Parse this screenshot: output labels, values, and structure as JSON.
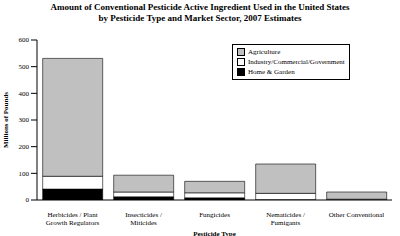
{
  "chart_data": {
    "type": "bar",
    "title": "Amount of Conventional Pesticide Active Ingredient Used in the United States\nby Pesticide Type and Market Sector, 2007 Estimates",
    "x_label": "Pesticide Type",
    "y_label": "Millions of Pounds",
    "categories": [
      "Herbicides / Plant\nGrowth Regulators",
      "Insecticides /\nMiticides",
      "Fungicides",
      "Nematicides /\nFumigants",
      "Other Conventional"
    ],
    "series": [
      {
        "name": "Home & Garden",
        "color": "#000000",
        "values": [
          41,
          12,
          8,
          1,
          0
        ]
      },
      {
        "name": "Industry/Commercial/Government",
        "color": "#ffffff",
        "values": [
          48,
          18,
          19,
          24,
          3
        ]
      },
      {
        "name": "Agriculture",
        "color": "#c0c0c0",
        "values": [
          442,
          63,
          43,
          110,
          27
        ]
      }
    ],
    "ylim": [
      0,
      600
    ],
    "yticks": [
      0,
      100,
      200,
      300,
      400,
      500,
      600
    ],
    "stacked": true,
    "grid": false,
    "legend": "upper right"
  }
}
